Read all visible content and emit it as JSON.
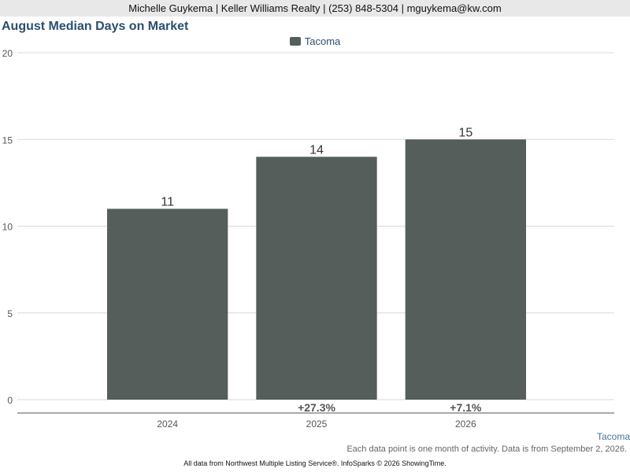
{
  "header": {
    "text": "Michelle Guykema | Keller Williams Realty | (253) 848-5304 | mguykema@kw.com"
  },
  "chart_data": {
    "type": "bar",
    "title": "August Median Days on Market",
    "categories": [
      "2024",
      "2025",
      "2026"
    ],
    "series": [
      {
        "name": "Tacoma",
        "values": [
          11,
          14,
          15
        ],
        "color": "#555e5b"
      }
    ],
    "changes": [
      "",
      "+27.3%",
      "+7.1%"
    ],
    "ylim": [
      0,
      20
    ],
    "yticks": [
      "0",
      "5",
      "10",
      "15",
      "20"
    ],
    "grid": true,
    "legend_position": "top-center"
  },
  "series_tag": "Tacoma",
  "note": "Each data point is one month of activity. Data is from September 2, 2026.",
  "footer": "All data from Northwest Multiple Listing Service®. InfoSparks © 2026 ShowingTime."
}
